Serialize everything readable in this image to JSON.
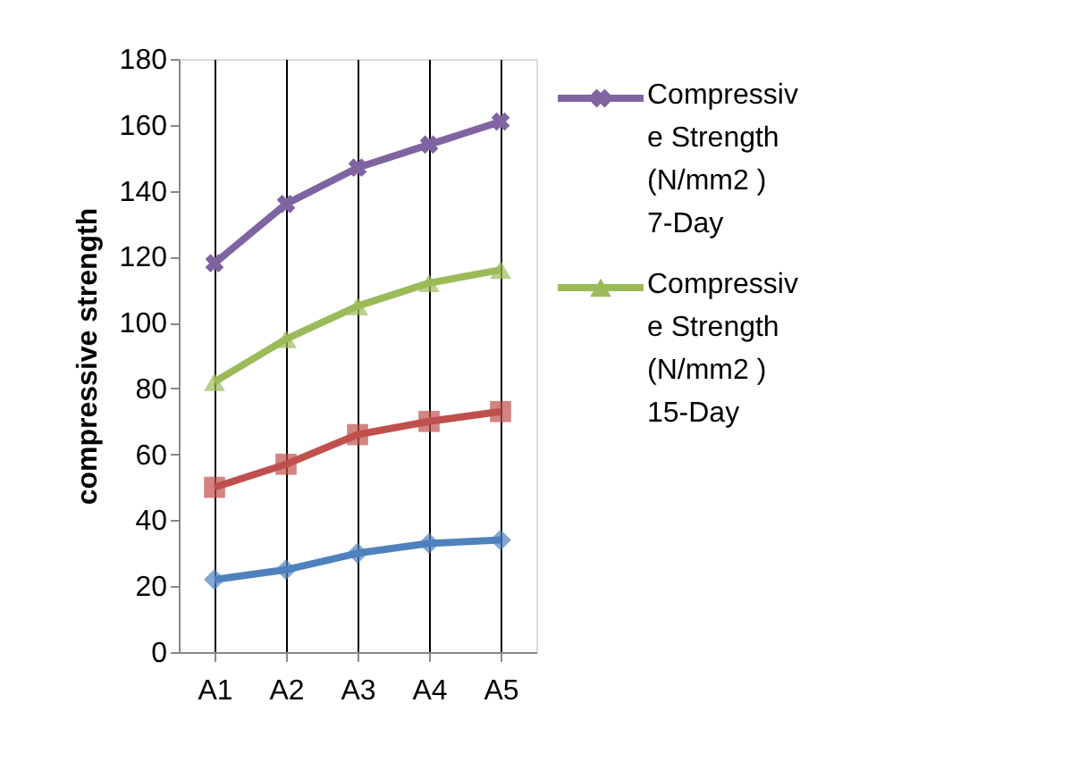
{
  "chart_data": {
    "type": "line",
    "ylabel": "compressive strength",
    "categories": [
      "A1",
      "A2",
      "A3",
      "A4",
      "A5"
    ],
    "series": [
      {
        "name": "Compressive Strength (N/mm2 ) 7-Day",
        "color": "#8064a2",
        "marker": "cross",
        "values": [
          118,
          136,
          147,
          154,
          161
        ]
      },
      {
        "name": "Compressive Strength (N/mm2 ) 15-Day",
        "color": "#9bbb59",
        "marker": "triangle",
        "values": [
          82,
          95,
          105,
          112,
          116
        ]
      },
      {
        "color": "#c0504d",
        "marker": "square",
        "values": [
          50,
          57,
          66,
          70,
          73
        ]
      },
      {
        "color": "#4f81bd",
        "marker": "diamond",
        "values": [
          22,
          25,
          30,
          33,
          34
        ]
      }
    ],
    "ylim": [
      0,
      180
    ],
    "yticks": [
      0,
      20,
      40,
      60,
      80,
      100,
      120,
      140,
      160,
      180
    ],
    "grid": "x",
    "legend": "right"
  }
}
